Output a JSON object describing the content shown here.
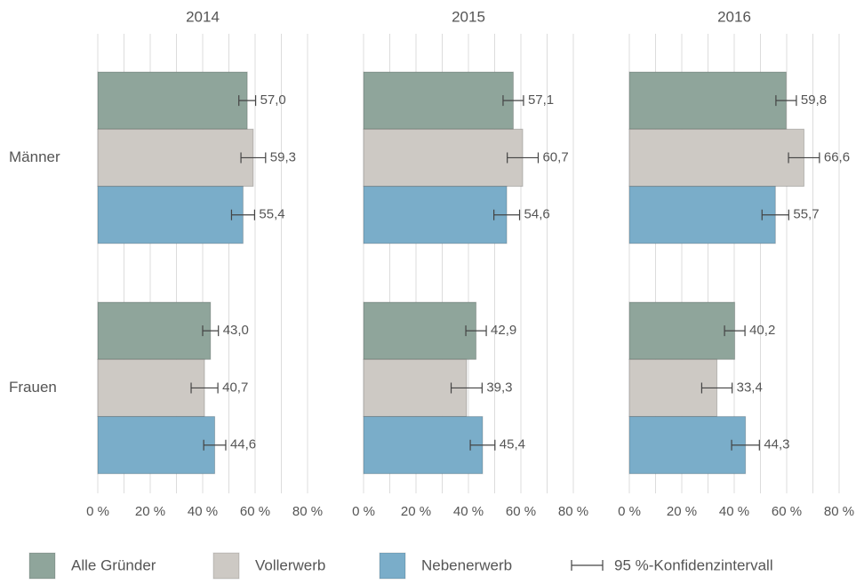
{
  "chart_data": {
    "type": "bar",
    "orientation": "horizontal",
    "categories": [
      "Männer",
      "Frauen"
    ],
    "series": [
      {
        "name": "Alle Gründer",
        "color": "#8fa59b"
      },
      {
        "name": "Vollerwerb",
        "color": "#cdc9c4"
      },
      {
        "name": "Nebenerwerb",
        "color": "#7aadc9"
      }
    ],
    "ci_label": "95 %-Konfidenzintervall",
    "xlim": [
      0,
      85
    ],
    "xticks": [
      {
        "value": 0,
        "label": "0 %"
      },
      {
        "value": 20,
        "label": "20 %"
      },
      {
        "value": 40,
        "label": "40 %"
      },
      {
        "value": 60,
        "label": "60 %"
      },
      {
        "value": 80,
        "label": "80 %"
      }
    ],
    "minor_grid": [
      10,
      30,
      50,
      70
    ],
    "grid": true,
    "panels": [
      {
        "title": "2014",
        "series": [
          {
            "values": [
              57.0,
              43.0
            ],
            "value_labels": [
              "57,0",
              "43,0"
            ],
            "errors": [
              3.2,
              3.0
            ]
          },
          {
            "values": [
              59.3,
              40.7
            ],
            "value_labels": [
              "59,3",
              "40,7"
            ],
            "errors": [
              4.7,
              5.1
            ]
          },
          {
            "values": [
              55.4,
              44.6
            ],
            "value_labels": [
              "55,4",
              "44,6"
            ],
            "errors": [
              4.4,
              4.2
            ]
          }
        ]
      },
      {
        "title": "2015",
        "series": [
          {
            "values": [
              57.1,
              42.9
            ],
            "value_labels": [
              "57,1",
              "42,9"
            ],
            "errors": [
              3.9,
              3.9
            ]
          },
          {
            "values": [
              60.7,
              39.3
            ],
            "value_labels": [
              "60,7",
              "39,3"
            ],
            "errors": [
              5.9,
              5.9
            ]
          },
          {
            "values": [
              54.6,
              45.4
            ],
            "value_labels": [
              "54,6",
              "45,4"
            ],
            "errors": [
              4.9,
              4.7
            ]
          }
        ]
      },
      {
        "title": "2016",
        "series": [
          {
            "values": [
              59.8,
              40.2
            ],
            "value_labels": [
              "59,8",
              "40,2"
            ],
            "errors": [
              3.9,
              3.9
            ]
          },
          {
            "values": [
              66.6,
              33.4
            ],
            "value_labels": [
              "66,6",
              "33,4"
            ],
            "errors": [
              5.9,
              5.8
            ]
          },
          {
            "values": [
              55.7,
              44.3
            ],
            "value_labels": [
              "55,7",
              "44,3"
            ],
            "errors": [
              5.1,
              5.3
            ]
          }
        ]
      }
    ]
  }
}
